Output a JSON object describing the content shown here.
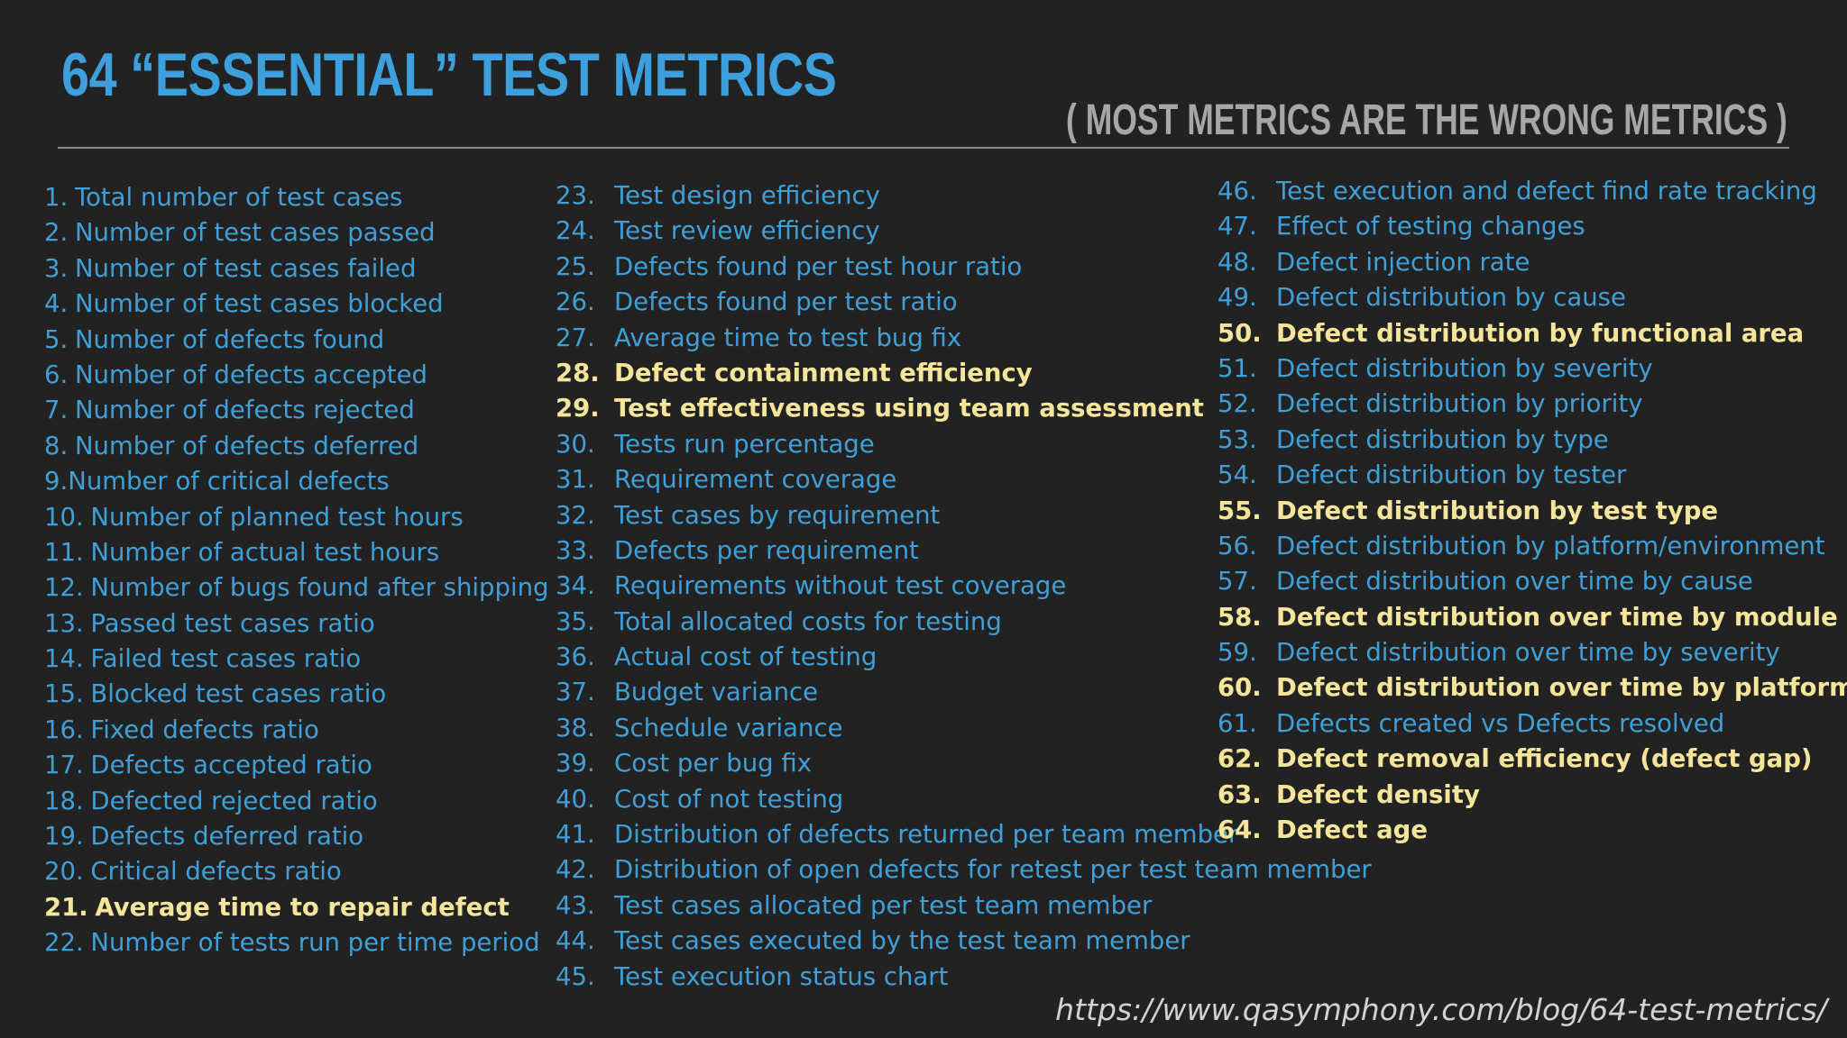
{
  "header": {
    "title": "64 “ESSENTIAL” TEST METRICS",
    "subtitle": "( MOST METRICS ARE THE WRONG METRICS )"
  },
  "columns": [
    [
      {
        "num": "1.",
        "text": "Total number of test cases",
        "highlight": false
      },
      {
        "num": "2.",
        "text": "Number of test cases passed",
        "highlight": false
      },
      {
        "num": "3.",
        "text": "Number of test cases failed",
        "highlight": false
      },
      {
        "num": "4.",
        "text": "Number of test cases blocked",
        "highlight": false
      },
      {
        "num": "5.",
        "text": "Number of defects found",
        "highlight": false
      },
      {
        "num": "6.",
        "text": "Number of defects accepted",
        "highlight": false
      },
      {
        "num": "7.",
        "text": "Number of defects rejected",
        "highlight": false
      },
      {
        "num": "8.",
        "text": "Number of defects deferred",
        "highlight": false
      },
      {
        "num": "9.",
        "text": "Number of critical defects",
        "highlight": false
      },
      {
        "num": "10.",
        "text": "Number of planned test hours",
        "highlight": false
      },
      {
        "num": "11.",
        "text": "Number of actual test hours",
        "highlight": false
      },
      {
        "num": "12.",
        "text": "Number of bugs found after shipping",
        "highlight": false
      },
      {
        "num": "13.",
        "text": "Passed test cases ratio",
        "highlight": false
      },
      {
        "num": "14.",
        "text": "Failed test cases ratio",
        "highlight": false
      },
      {
        "num": "15.",
        "text": "Blocked test cases ratio",
        "highlight": false
      },
      {
        "num": "16.",
        "text": "Fixed defects ratio",
        "highlight": false
      },
      {
        "num": "17.",
        "text": "Defects accepted ratio",
        "highlight": false
      },
      {
        "num": "18.",
        "text": "Defected rejected ratio",
        "highlight": false
      },
      {
        "num": "19.",
        "text": "Defects deferred ratio",
        "highlight": false
      },
      {
        "num": "20.",
        "text": "Critical defects ratio",
        "highlight": false
      },
      {
        "num": "21.",
        "text": "Average time to repair defect",
        "highlight": true
      },
      {
        "num": "22.",
        "text": "Number of tests run per time period",
        "highlight": false
      }
    ],
    [
      {
        "num": "23.",
        "text": "Test design efficiency",
        "highlight": false
      },
      {
        "num": "24.",
        "text": "Test review efficiency",
        "highlight": false
      },
      {
        "num": "25.",
        "text": "Defects found per test hour ratio",
        "highlight": false
      },
      {
        "num": "26.",
        "text": "Defects found per test ratio",
        "highlight": false
      },
      {
        "num": "27.",
        "text": "Average time to test bug fix",
        "highlight": false
      },
      {
        "num": "28.",
        "text": "Defect containment efficiency",
        "highlight": true
      },
      {
        "num": "29.",
        "text": "Test effectiveness using team assessment",
        "highlight": true
      },
      {
        "num": "30.",
        "text": "Tests run percentage",
        "highlight": false
      },
      {
        "num": "31.",
        "text": "Requirement coverage",
        "highlight": false
      },
      {
        "num": "32.",
        "text": "Test cases by requirement",
        "highlight": false
      },
      {
        "num": "33.",
        "text": "Defects per requirement",
        "highlight": false
      },
      {
        "num": "34.",
        "text": "Requirements without test coverage",
        "highlight": false
      },
      {
        "num": "35.",
        "text": "Total allocated costs for testing",
        "highlight": false
      },
      {
        "num": "36.",
        "text": "Actual cost of testing",
        "highlight": false
      },
      {
        "num": "37.",
        "text": "Budget variance",
        "highlight": false
      },
      {
        "num": "38.",
        "text": "Schedule variance",
        "highlight": false
      },
      {
        "num": "39.",
        "text": "Cost per bug fix",
        "highlight": false
      },
      {
        "num": "40.",
        "text": "Cost of not testing",
        "highlight": false
      },
      {
        "num": "41.",
        "text": "Distribution of defects returned per team member",
        "highlight": false
      },
      {
        "num": "42.",
        "text": "Distribution of open defects for retest per test team member",
        "highlight": false
      },
      {
        "num": "43.",
        "text": "Test cases allocated per test team member",
        "highlight": false
      },
      {
        "num": "44.",
        "text": "Test cases executed by the test team member",
        "highlight": false
      },
      {
        "num": "45.",
        "text": "Test execution status chart",
        "highlight": false
      }
    ],
    [
      {
        "num": "46.",
        "text": "Test execution and defect find rate tracking",
        "highlight": false
      },
      {
        "num": "47.",
        "text": "Effect of testing changes",
        "highlight": false
      },
      {
        "num": "48.",
        "text": "Defect injection rate",
        "highlight": false
      },
      {
        "num": "49.",
        "text": "Defect distribution by cause",
        "highlight": false
      },
      {
        "num": "50.",
        "text": "Defect distribution by functional area",
        "highlight": true
      },
      {
        "num": "51.",
        "text": "Defect distribution by severity",
        "highlight": false
      },
      {
        "num": "52.",
        "text": "Defect distribution by priority",
        "highlight": false
      },
      {
        "num": "53.",
        "text": "Defect distribution by type",
        "highlight": false
      },
      {
        "num": "54.",
        "text": "Defect distribution by tester",
        "highlight": false
      },
      {
        "num": "55.",
        "text": "Defect distribution by test type",
        "highlight": true
      },
      {
        "num": "56.",
        "text": "Defect distribution by platform/environment",
        "highlight": false
      },
      {
        "num": "57.",
        "text": "Defect distribution over time by cause",
        "highlight": false
      },
      {
        "num": "58.",
        "text": "Defect distribution over time by module",
        "highlight": true
      },
      {
        "num": "59.",
        "text": "Defect distribution over time by severity",
        "highlight": false
      },
      {
        "num": "60.",
        "text": "Defect distribution over time by platform",
        "highlight": true
      },
      {
        "num": "61.",
        "text": "Defects created vs Defects resolved",
        "highlight": false
      },
      {
        "num": "62.",
        "text": "Defect removal efficiency (defect gap)",
        "highlight": true
      },
      {
        "num": "63.",
        "text": "Defect density",
        "highlight": true
      },
      {
        "num": "64.",
        "text": "Defect age",
        "highlight": true
      }
    ]
  ],
  "footer": {
    "source_url": "https://www.qasymphony.com/blog/64-test-metrics/"
  },
  "colors": {
    "background": "#222222",
    "title": "#3d9fdb",
    "subtitle": "#a7a7a7",
    "item": "#3f9fd6",
    "highlight": "#f4e59a",
    "url": "#d2d2d2"
  }
}
